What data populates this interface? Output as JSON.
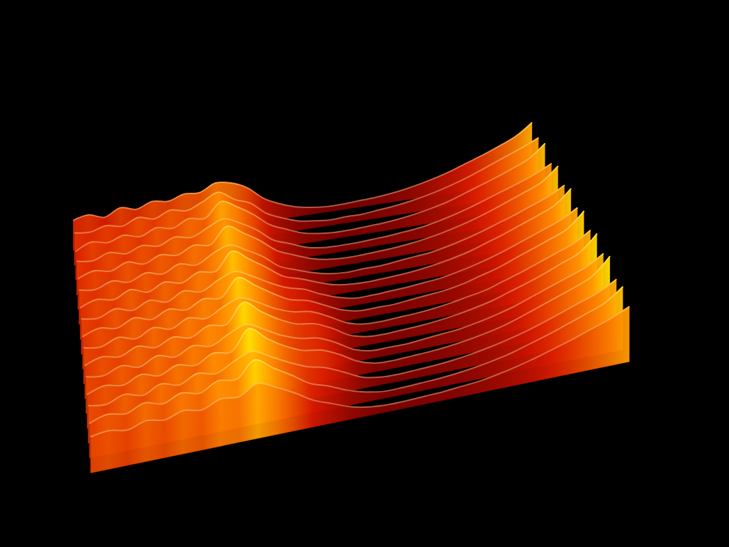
{
  "chart_data": {
    "type": "surface3d",
    "tick_labels": false,
    "series": [
      {
        "values": [
          38,
          42,
          36,
          45,
          40,
          47,
          44,
          50,
          49,
          58,
          55,
          46,
          30,
          20,
          13,
          9,
          7,
          7,
          8,
          9,
          11,
          14,
          18,
          23,
          29,
          36,
          43,
          51,
          60,
          74
        ]
      },
      {
        "values": [
          41,
          39,
          44,
          40,
          48,
          43,
          51,
          47,
          55,
          64,
          52,
          44,
          28,
          19,
          12,
          9,
          7,
          8,
          8,
          10,
          12,
          15,
          19,
          24,
          30,
          37,
          45,
          53,
          61,
          70
        ]
      },
      {
        "values": [
          36,
          45,
          41,
          47,
          42,
          50,
          46,
          55,
          52,
          70,
          60,
          47,
          31,
          22,
          14,
          10,
          8,
          8,
          9,
          10,
          12,
          15,
          19,
          24,
          31,
          38,
          45,
          53,
          62,
          78
        ]
      },
      {
        "values": [
          43,
          40,
          47,
          42,
          49,
          45,
          53,
          49,
          58,
          66,
          57,
          45,
          29,
          21,
          13,
          9,
          8,
          8,
          9,
          10,
          12,
          14,
          18,
          23,
          29,
          36,
          43,
          50,
          58,
          68
        ]
      },
      {
        "values": [
          39,
          46,
          42,
          50,
          44,
          52,
          48,
          57,
          54,
          74,
          62,
          49,
          33,
          24,
          16,
          11,
          9,
          9,
          10,
          11,
          13,
          16,
          20,
          25,
          31,
          38,
          46,
          54,
          63,
          80
        ]
      },
      {
        "values": [
          44,
          41,
          48,
          43,
          51,
          46,
          55,
          50,
          61,
          68,
          58,
          46,
          30,
          22,
          15,
          10,
          8,
          9,
          9,
          11,
          13,
          15,
          19,
          24,
          30,
          37,
          44,
          52,
          60,
          71
        ]
      },
      {
        "values": [
          40,
          47,
          43,
          52,
          45,
          54,
          49,
          59,
          56,
          78,
          64,
          50,
          35,
          28,
          20,
          13,
          10,
          9,
          10,
          11,
          13,
          16,
          20,
          25,
          32,
          39,
          47,
          55,
          64,
          82
        ]
      },
      {
        "values": [
          45,
          42,
          50,
          44,
          53,
          47,
          57,
          52,
          63,
          70,
          60,
          48,
          38,
          32,
          22,
          14,
          9,
          9,
          10,
          11,
          13,
          15,
          19,
          24,
          30,
          37,
          45,
          53,
          61,
          73
        ]
      },
      {
        "values": [
          41,
          48,
          44,
          53,
          47,
          56,
          51,
          61,
          58,
          80,
          66,
          52,
          40,
          35,
          25,
          15,
          10,
          10,
          10,
          12,
          14,
          16,
          20,
          26,
          32,
          40,
          48,
          56,
          65,
          84
        ]
      },
      {
        "values": [
          46,
          43,
          51,
          45,
          55,
          49,
          59,
          54,
          65,
          72,
          62,
          50,
          42,
          38,
          28,
          16,
          10,
          9,
          10,
          11,
          13,
          16,
          20,
          24,
          31,
          38,
          46,
          54,
          62,
          75
        ]
      },
      {
        "values": [
          42,
          49,
          45,
          54,
          48,
          57,
          52,
          63,
          60,
          84,
          68,
          54,
          44,
          40,
          30,
          17,
          11,
          10,
          11,
          12,
          14,
          17,
          21,
          26,
          33,
          40,
          48,
          57,
          66,
          86
        ]
      },
      {
        "values": [
          47,
          44,
          52,
          46,
          56,
          50,
          60,
          55,
          66,
          74,
          63,
          51,
          43,
          39,
          29,
          16,
          10,
          10,
          10,
          12,
          14,
          16,
          20,
          25,
          31,
          39,
          47,
          55,
          63,
          76
        ]
      },
      {
        "values": [
          43,
          50,
          46,
          55,
          49,
          58,
          53,
          64,
          61,
          86,
          69,
          55,
          45,
          41,
          31,
          18,
          11,
          10,
          11,
          12,
          14,
          17,
          21,
          26,
          33,
          41,
          49,
          57,
          67,
          88
        ]
      },
      {
        "values": [
          48,
          45,
          53,
          47,
          57,
          51,
          61,
          56,
          67,
          75,
          64,
          52,
          42,
          36,
          26,
          15,
          10,
          9,
          10,
          11,
          13,
          16,
          20,
          25,
          31,
          38,
          46,
          54,
          62,
          74
        ]
      },
      {
        "values": [
          44,
          51,
          47,
          56,
          50,
          59,
          54,
          65,
          62,
          82,
          67,
          53,
          38,
          30,
          20,
          13,
          9,
          9,
          10,
          11,
          13,
          16,
          20,
          25,
          32,
          39,
          47,
          55,
          64,
          80
        ]
      },
      {
        "values": [
          46,
          49,
          45,
          52,
          48,
          55,
          51,
          60,
          58,
          70,
          60,
          48,
          34,
          25,
          16,
          11,
          9,
          9,
          10,
          11,
          13,
          15,
          19,
          24,
          30,
          37,
          44,
          52,
          60,
          70
        ]
      }
    ]
  }
}
